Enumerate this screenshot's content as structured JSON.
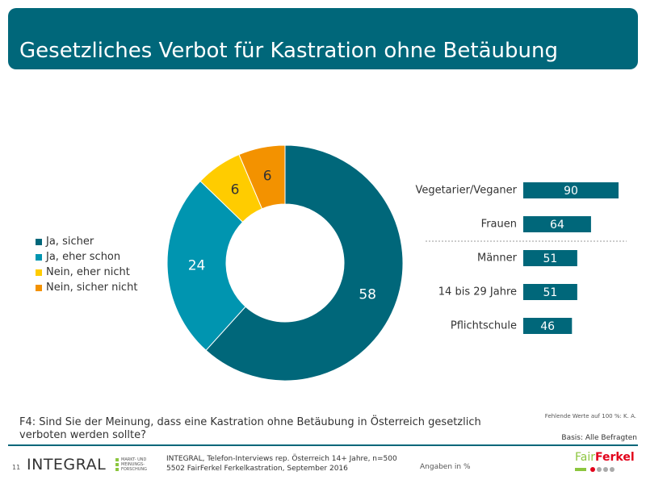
{
  "title": "Gesetzliches Verbot für Kastration ohne Betäubung",
  "colors": {
    "header": "#00677a",
    "ja_sicher": "#00677a",
    "ja_eher_schon": "#0095b0",
    "nein_eher_nicht": "#ffcc00",
    "nein_sicher_nicht": "#f39200"
  },
  "chart_data": [
    {
      "type": "pie",
      "donut": true,
      "categories": [
        "Ja, sicher",
        "Ja, eher schon",
        "Nein, eher nicht",
        "Nein, sicher nicht"
      ],
      "values": [
        58,
        24,
        6,
        6
      ],
      "value_labels": [
        "58",
        "24",
        "6",
        "6"
      ],
      "colors": [
        "#00677a",
        "#0095b0",
        "#ffcc00",
        "#f39200"
      ],
      "legend_position": "left"
    },
    {
      "type": "bar",
      "orientation": "horizontal",
      "categories": [
        "Vegetarier/Veganer",
        "Frauen",
        "Männer",
        "14 bis 29 Jahre",
        "Pflichtschule"
      ],
      "values": [
        90,
        64,
        51,
        51,
        46
      ],
      "value_labels": [
        "90",
        "64",
        "51",
        "51",
        "46"
      ],
      "color": "#00677a",
      "xlim": [
        0,
        100
      ],
      "separator_after_index": 1
    }
  ],
  "legend": [
    {
      "label": "Ja, sicher",
      "color": "#00677a"
    },
    {
      "label": "Ja, eher schon",
      "color": "#0095b0"
    },
    {
      "label": "Nein, eher nicht",
      "color": "#ffcc00"
    },
    {
      "label": "Nein, sicher nicht",
      "color": "#f39200"
    }
  ],
  "question": "F4: Sind Sie der Meinung, dass eine Kastration ohne Betäubung in Österreich gesetzlich verboten werden sollte?",
  "note_missing": "Fehlende Werte auf 100 %: K. A.",
  "basis": "Basis: Alle Befragten",
  "footer": {
    "page_number": "11",
    "logo": "INTEGRAL",
    "logo_tagline": [
      "MARKT- UND",
      "MEINUNGS-",
      "FORSCHUNG"
    ],
    "source_line1": "INTEGRAL, Telefon-Interviews rep. Österreich 14+ Jahre, n=500",
    "source_line2": "5502 FairFerkel Ferkelkastration, September 2016",
    "units": "Angaben in %",
    "partner_logo_part1": "Fair",
    "partner_logo_part2": "Ferkel"
  }
}
